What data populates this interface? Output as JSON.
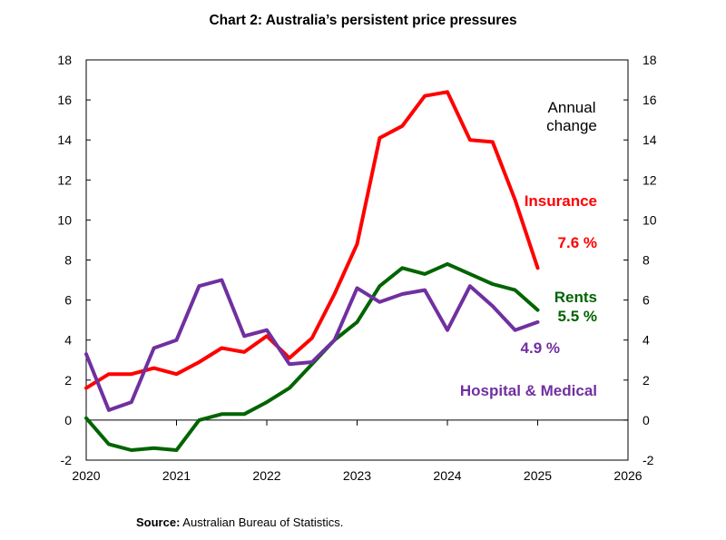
{
  "chart_data": {
    "type": "line",
    "title": "Chart 2: Australia’s persistent price pressures",
    "annotation": [
      "Annual",
      "change"
    ],
    "xlim": [
      2020,
      2026
    ],
    "ylim": [
      -2,
      18
    ],
    "x_ticks": [
      "2020",
      "2021",
      "2022",
      "2023",
      "2024",
      "2025",
      "2026"
    ],
    "y_ticks": [
      -2,
      0,
      2,
      4,
      6,
      8,
      10,
      12,
      14,
      16,
      18
    ],
    "x": [
      2020.0,
      2020.25,
      2020.5,
      2020.75,
      2021.0,
      2021.25,
      2021.5,
      2021.75,
      2022.0,
      2022.25,
      2022.5,
      2022.75,
      2023.0,
      2023.25,
      2023.5,
      2023.75,
      2024.0,
      2024.25,
      2024.5,
      2024.75,
      2025.0
    ],
    "series": [
      {
        "name": "Insurance",
        "color": "#ff0000",
        "label": "Insurance",
        "value_label": "7.6 %",
        "values": [
          1.6,
          2.3,
          2.3,
          2.6,
          2.3,
          2.9,
          3.6,
          3.4,
          4.2,
          3.1,
          4.1,
          6.3,
          8.8,
          14.1,
          14.7,
          16.2,
          16.4,
          14.0,
          13.9,
          11.0,
          7.6
        ]
      },
      {
        "name": "Rents",
        "color": "#006400",
        "label": "Rents",
        "value_label": "5.5 %",
        "values": [
          0.1,
          -1.2,
          -1.5,
          -1.4,
          -1.5,
          0.0,
          0.3,
          0.3,
          0.9,
          1.6,
          2.8,
          4.0,
          4.9,
          6.7,
          7.6,
          7.3,
          7.8,
          7.3,
          6.8,
          6.5,
          5.5
        ]
      },
      {
        "name": "Hospital & Medical",
        "color": "#7030a0",
        "label": "Hospital & Medical",
        "value_label": "4.9 %",
        "values": [
          3.3,
          0.5,
          0.9,
          3.6,
          4.0,
          6.7,
          7.0,
          4.2,
          4.5,
          2.8,
          2.9,
          4.0,
          6.6,
          5.9,
          6.3,
          6.5,
          4.5,
          6.7,
          5.7,
          4.5,
          4.9
        ]
      }
    ]
  },
  "source": {
    "label": "Source:",
    "text": " Australian Bureau of Statistics."
  }
}
